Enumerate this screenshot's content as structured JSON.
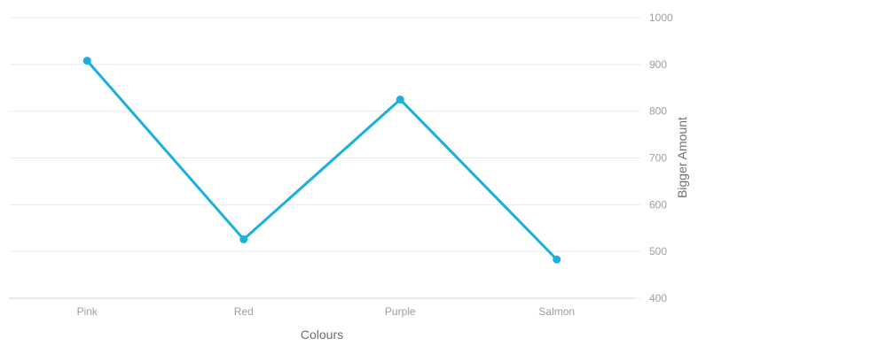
{
  "chart_data": {
    "type": "line",
    "categories": [
      "Pink",
      "Red",
      "Purple",
      "Salmon"
    ],
    "series": [
      {
        "values": [
          908,
          526,
          825,
          483
        ]
      }
    ],
    "title": "",
    "xlabel": "Colours",
    "ylabel": "Bigger Amount",
    "ylim": [
      400,
      1000
    ],
    "yticks": [
      400,
      500,
      600,
      700,
      800,
      900,
      1000
    ],
    "y_axis_side": "right",
    "grid": true,
    "line_color": "#1aafdc"
  }
}
